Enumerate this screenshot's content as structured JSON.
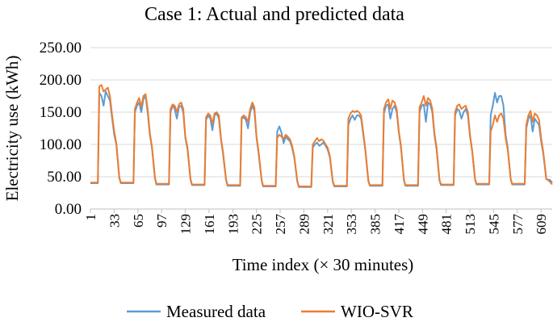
{
  "chart_data": {
    "type": "line",
    "title": "Case 1: Actual and predicted data",
    "xlabel": "Time index (× 30 minutes)",
    "ylabel": "Electricity use (kWh)",
    "ylim": [
      0,
      250
    ],
    "y_ticks": [
      "0.00",
      "50.00",
      "100.00",
      "150.00",
      "200.00",
      "250.00"
    ],
    "x_range": [
      1,
      624
    ],
    "x_ticks": [
      "1",
      "33",
      "65",
      "97",
      "129",
      "161",
      "193",
      "225",
      "257",
      "289",
      "321",
      "353",
      "385",
      "417",
      "449",
      "481",
      "513",
      "545",
      "577",
      "609"
    ],
    "legend_position": "bottom",
    "series": [
      {
        "name": "Measured data",
        "color": "#5b9bd5",
        "days": [
          {
            "base": 40,
            "rise": 13,
            "fall": 36,
            "peak_values": [
              180,
              175,
              160,
              182,
              175,
              168,
              140,
              115,
              100
            ]
          },
          {
            "base": 40,
            "rise": 61,
            "fall": 84,
            "peak_values": [
              150,
              160,
              165,
              150,
              170,
              175,
              150,
              115,
              95
            ]
          },
          {
            "base": 38,
            "rise": 109,
            "fall": 132,
            "peak_values": [
              150,
              160,
              155,
              140,
              158,
              160,
              150,
              110,
              92
            ]
          },
          {
            "base": 37,
            "rise": 157,
            "fall": 180,
            "peak_values": [
              138,
              145,
              140,
              122,
              145,
              148,
              140,
              108,
              85
            ]
          },
          {
            "base": 36,
            "rise": 205,
            "fall": 228,
            "peak_values": [
              140,
              142,
              138,
              125,
              150,
              160,
              152,
              110,
              85
            ]
          },
          {
            "base": 35,
            "rise": 253,
            "fall": 276,
            "peak_values": [
              120,
              128,
              118,
              102,
              112,
              108,
              105,
              95,
              80
            ]
          },
          {
            "base": 34,
            "rise": 301,
            "fall": 324,
            "peak_values": [
              95,
              100,
              103,
              98,
              100,
              103,
              98,
              92,
              80
            ]
          },
          {
            "base": 35,
            "rise": 349,
            "fall": 372,
            "peak_values": [
              130,
              140,
              145,
              138,
              145,
              145,
              140,
              115,
              90
            ]
          },
          {
            "base": 36,
            "rise": 397,
            "fall": 420,
            "peak_values": [
              148,
              160,
              162,
              140,
              155,
              160,
              150,
              118,
              95
            ]
          },
          {
            "base": 36,
            "rise": 445,
            "fall": 468,
            "peak_values": [
              150,
              160,
              162,
              135,
              165,
              162,
              150,
              115,
              92
            ]
          },
          {
            "base": 37,
            "rise": 493,
            "fall": 516,
            "peak_values": [
              145,
              155,
              152,
              140,
              150,
              155,
              145,
              112,
              90
            ]
          },
          {
            "base": 38,
            "rise": 541,
            "fall": 564,
            "peak_values": [
              145,
              160,
              180,
              165,
              175,
              175,
              160,
              115,
              95
            ]
          },
          {
            "base": 38,
            "rise": 589,
            "fall": 612,
            "peak_values": [
              125,
              140,
              145,
              120,
              140,
              135,
              130,
              105,
              85
            ]
          }
        ],
        "tail_value": 45
      },
      {
        "name": "WIO-SVR",
        "color": "#ed7d31",
        "days": [
          {
            "base": 41,
            "rise": 13,
            "fall": 36,
            "peak_values": [
              190,
              192,
              182,
              185,
              188,
              175,
              145,
              120,
              102
            ]
          },
          {
            "base": 41,
            "rise": 61,
            "fall": 84,
            "peak_values": [
              155,
              165,
              172,
              158,
              175,
              178,
              155,
              118,
              97
            ]
          },
          {
            "base": 39,
            "rise": 109,
            "fall": 132,
            "peak_values": [
              155,
              162,
              160,
              150,
              162,
              165,
              155,
              112,
              95
            ]
          },
          {
            "base": 38,
            "rise": 157,
            "fall": 180,
            "peak_values": [
              142,
              148,
              145,
              132,
              148,
              150,
              145,
              110,
              88
            ]
          },
          {
            "base": 37,
            "rise": 205,
            "fall": 228,
            "peak_values": [
              142,
              145,
              142,
              135,
              155,
              165,
              158,
              112,
              88
            ]
          },
          {
            "base": 36,
            "rise": 253,
            "fall": 276,
            "peak_values": [
              110,
              115,
              112,
              108,
              115,
              112,
              108,
              98,
              82
            ]
          },
          {
            "base": 35,
            "rise": 301,
            "fall": 324,
            "peak_values": [
              100,
              105,
              110,
              105,
              108,
              106,
              100,
              95,
              82
            ]
          },
          {
            "base": 36,
            "rise": 349,
            "fall": 372,
            "peak_values": [
              140,
              148,
              152,
              150,
              152,
              150,
              145,
              118,
              92
            ]
          },
          {
            "base": 37,
            "rise": 397,
            "fall": 420,
            "peak_values": [
              155,
              165,
              170,
              155,
              168,
              165,
              155,
              120,
              97
            ]
          },
          {
            "base": 37,
            "rise": 445,
            "fall": 468,
            "peak_values": [
              158,
              165,
              175,
              160,
              172,
              168,
              155,
              118,
              95
            ]
          },
          {
            "base": 38,
            "rise": 493,
            "fall": 516,
            "peak_values": [
              150,
              160,
              162,
              155,
              158,
              160,
              150,
              115,
              92
            ]
          },
          {
            "base": 39,
            "rise": 541,
            "fall": 564,
            "peak_values": [
              120,
              130,
              145,
              135,
              145,
              148,
              140,
              110,
              92
            ]
          },
          {
            "base": 39,
            "rise": 589,
            "fall": 612,
            "peak_values": [
              130,
              145,
              152,
              135,
              148,
              145,
              138,
              110,
              88
            ]
          }
        ],
        "tail_value": 42
      }
    ]
  }
}
